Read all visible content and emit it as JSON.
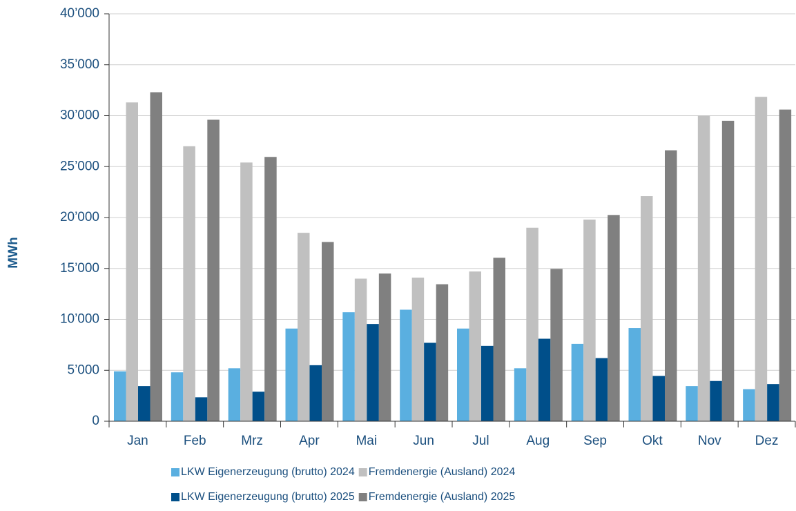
{
  "chart_data": {
    "type": "bar",
    "y_label": "MWh",
    "categories": [
      "Jan",
      "Feb",
      "Mrz",
      "Apr",
      "Mai",
      "Jun",
      "Jul",
      "Aug",
      "Sep",
      "Okt",
      "Nov",
      "Dez"
    ],
    "series": [
      {
        "name": "LKW Eigenerzeugung (brutto) 2024",
        "color": "#5aafe0",
        "values": [
          4900,
          4800,
          5200,
          9100,
          10700,
          10950,
          9100,
          5200,
          7600,
          9150,
          3450,
          3150
        ]
      },
      {
        "name": "Fremdenergie (Ausland) 2024",
        "color": "#c0c0c0",
        "values": [
          31300,
          27000,
          25400,
          18500,
          14000,
          14100,
          14700,
          19000,
          19800,
          22100,
          30000,
          31850
        ]
      },
      {
        "name": "LKW Eigenerzeugung (brutto) 2025",
        "color": "#004f8a",
        "values": [
          3450,
          2350,
          2900,
          5500,
          9550,
          7700,
          7400,
          8100,
          6200,
          4450,
          3950,
          3650
        ]
      },
      {
        "name": "Fremdenergie (Ausland) 2025",
        "color": "#808080",
        "values": [
          32300,
          29600,
          25950,
          17600,
          14500,
          13450,
          16050,
          14950,
          20250,
          26600,
          29500,
          30600
        ]
      }
    ],
    "ylim": [
      0,
      40000
    ],
    "yticks": [
      0,
      {
        "value": 5000,
        "label": "5’000"
      },
      {
        "value": 10000,
        "label": "10’000"
      },
      {
        "value": 15000,
        "label": "15’000"
      },
      {
        "value": 20000,
        "label": "20’000"
      },
      {
        "value": 25000,
        "label": "25’000"
      },
      {
        "value": 30000,
        "label": "30’000"
      },
      {
        "value": 35000,
        "label": "35’000"
      },
      {
        "value": 40000,
        "label": "40’000"
      }
    ],
    "grid": true
  }
}
